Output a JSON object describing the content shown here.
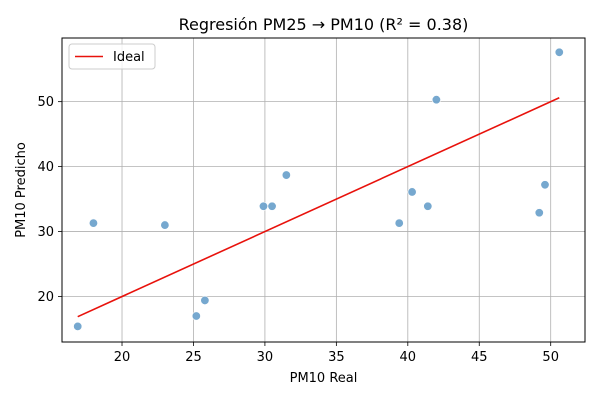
{
  "chart_data": {
    "type": "scatter",
    "title": "Regresión PM25 → PM10 (R² = 0.38)",
    "xlabel": "PM10 Real",
    "ylabel": "PM10 Predicho",
    "xlim": [
      15.8,
      52.4
    ],
    "ylim": [
      13.0,
      59.8
    ],
    "xticks": [
      20,
      25,
      30,
      35,
      40,
      45,
      50
    ],
    "yticks": [
      20,
      30,
      40,
      50
    ],
    "grid": true,
    "legend_position": "top-left",
    "points": {
      "color": "#6fa3cc",
      "x": [
        16.9,
        18.0,
        23.0,
        25.2,
        25.8,
        29.9,
        30.5,
        31.5,
        39.4,
        40.3,
        41.4,
        42.0,
        49.2,
        49.6,
        50.6
      ],
      "y": [
        15.4,
        31.3,
        31.0,
        17.0,
        19.4,
        33.9,
        33.9,
        38.7,
        31.3,
        36.1,
        33.9,
        50.3,
        32.9,
        37.2,
        57.6
      ]
    },
    "ideal_line": {
      "name": "Ideal",
      "color": "#e8120c",
      "x": [
        16.9,
        50.6
      ],
      "y": [
        16.9,
        50.6
      ]
    }
  }
}
